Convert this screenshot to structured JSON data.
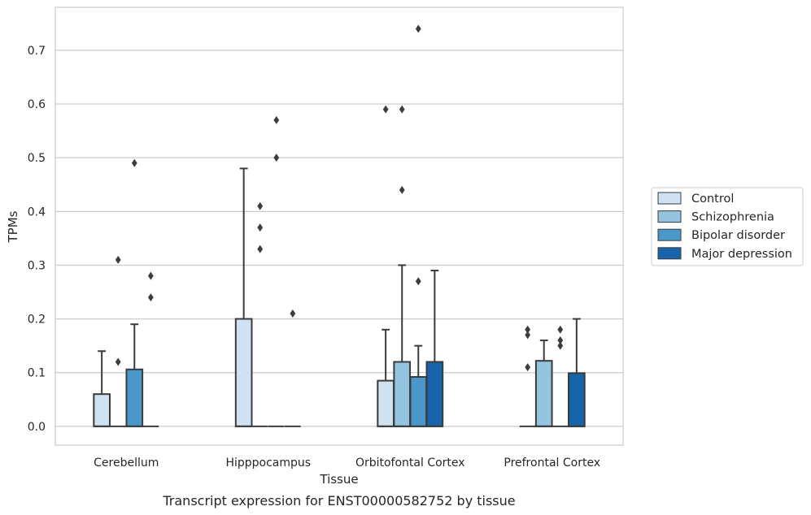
{
  "caption": "Transcript expression for ENST00000582752 by tissue",
  "chart_data": {
    "type": "box",
    "xlabel": "Tissue",
    "ylabel": "TPMs",
    "ylim": [
      -0.035,
      0.78
    ],
    "yticks": [
      0.0,
      0.1,
      0.2,
      0.3,
      0.4,
      0.5,
      0.6,
      0.7
    ],
    "ytick_labels": [
      "0.0",
      "0.1",
      "0.2",
      "0.3",
      "0.4",
      "0.5",
      "0.6",
      "0.7"
    ],
    "grid": "horizontal",
    "legend_position": "right",
    "categories": [
      "Cerebellum",
      "Hipppocampus",
      "Orbitofontal Cortex",
      "Prefrontal Cortex"
    ],
    "series": [
      {
        "name": "Control",
        "color": "#d0e1f2",
        "boxes": [
          {
            "q1": 0.0,
            "median": 0.0,
            "q3": 0.06,
            "whisker_low": 0.0,
            "whisker_high": 0.14,
            "outliers": []
          },
          {
            "q1": 0.0,
            "median": 0.0,
            "q3": 0.2,
            "whisker_low": 0.0,
            "whisker_high": 0.48,
            "outliers": []
          },
          {
            "q1": 0.0,
            "median": 0.0,
            "q3": 0.085,
            "whisker_low": 0.0,
            "whisker_high": 0.18,
            "outliers": [
              0.59
            ]
          },
          {
            "q1": 0.0,
            "median": 0.0,
            "q3": 0.0,
            "whisker_low": 0.0,
            "whisker_high": 0.0,
            "outliers": [
              0.18,
              0.17,
              0.11
            ]
          }
        ]
      },
      {
        "name": "Schizophrenia",
        "color": "#94c4df",
        "boxes": [
          {
            "q1": 0.0,
            "median": 0.0,
            "q3": 0.0,
            "whisker_low": 0.0,
            "whisker_high": 0.0,
            "outliers": [
              0.31,
              0.12
            ]
          },
          {
            "q1": 0.0,
            "median": 0.0,
            "q3": 0.0,
            "whisker_low": 0.0,
            "whisker_high": 0.0,
            "outliers": [
              0.41,
              0.37,
              0.33
            ]
          },
          {
            "q1": 0.0,
            "median": 0.0,
            "q3": 0.12,
            "whisker_low": 0.0,
            "whisker_high": 0.3,
            "outliers": [
              0.59,
              0.44
            ]
          },
          {
            "q1": 0.0,
            "median": 0.0,
            "q3": 0.122,
            "whisker_low": 0.0,
            "whisker_high": 0.16,
            "outliers": []
          }
        ]
      },
      {
        "name": "Bipolar disorder",
        "color": "#4a98c9",
        "boxes": [
          {
            "q1": 0.0,
            "median": 0.0,
            "q3": 0.106,
            "whisker_low": 0.0,
            "whisker_high": 0.19,
            "outliers": [
              0.49
            ]
          },
          {
            "q1": 0.0,
            "median": 0.0,
            "q3": 0.0,
            "whisker_low": 0.0,
            "whisker_high": 0.0,
            "outliers": [
              0.57,
              0.5
            ]
          },
          {
            "q1": 0.0,
            "median": 0.0,
            "q3": 0.092,
            "whisker_low": 0.0,
            "whisker_high": 0.15,
            "outliers": [
              0.74,
              0.27
            ]
          },
          {
            "q1": 0.0,
            "median": 0.0,
            "q3": 0.0,
            "whisker_low": 0.0,
            "whisker_high": 0.0,
            "outliers": [
              0.18,
              0.16,
              0.15
            ]
          }
        ]
      },
      {
        "name": "Major depression",
        "color": "#1764ab",
        "boxes": [
          {
            "q1": 0.0,
            "median": 0.0,
            "q3": 0.0,
            "whisker_low": 0.0,
            "whisker_high": 0.0,
            "outliers": [
              0.28,
              0.24
            ]
          },
          {
            "q1": 0.0,
            "median": 0.0,
            "q3": 0.0,
            "whisker_low": 0.0,
            "whisker_high": 0.0,
            "outliers": [
              0.21
            ]
          },
          {
            "q1": 0.0,
            "median": 0.0,
            "q3": 0.12,
            "whisker_low": 0.0,
            "whisker_high": 0.29,
            "outliers": []
          },
          {
            "q1": 0.0,
            "median": 0.0,
            "q3": 0.099,
            "whisker_low": 0.0,
            "whisker_high": 0.2,
            "outliers": []
          }
        ]
      }
    ]
  }
}
